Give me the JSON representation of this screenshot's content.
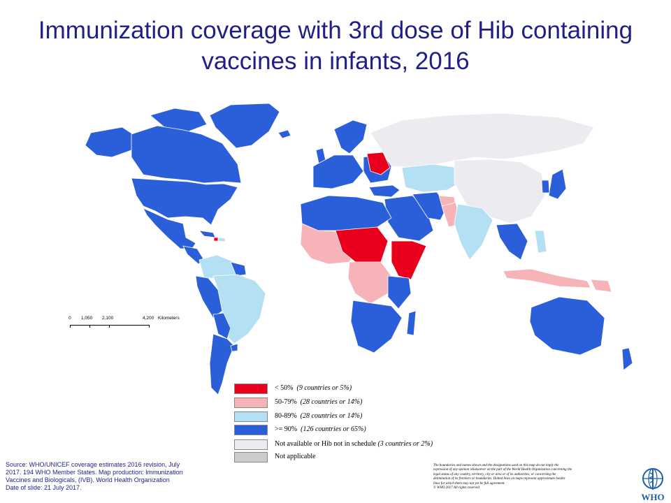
{
  "title": {
    "line1": "Immunization coverage with 3rd dose of Hib containing",
    "line2": "vaccines in infants, 2016"
  },
  "colors": {
    "below50": "#e8001c",
    "p50_79": "#f6b3b8",
    "p80_89": "#b3e0f2",
    "ge90": "#2b5fd9",
    "not_available": "#ececf0",
    "not_applicable": "#cccccc",
    "ocean": "#ffffff",
    "title": "#1f1f87"
  },
  "scale_bar": {
    "ticks": [
      "0",
      "1,050",
      "2,100",
      "4,200"
    ],
    "unit": "Kilometers"
  },
  "legend": [
    {
      "label": "< 50%",
      "note": "(9 countries or 5%)",
      "color_key": "below50"
    },
    {
      "label": "50-79%",
      "note": "(28 countries or 14%)",
      "color_key": "p50_79"
    },
    {
      "label": "80-89%",
      "note": "(28 countries or 14%)",
      "color_key": "p80_89"
    },
    {
      "label": ">= 90%",
      "note": "(126 countries or 65%)",
      "color_key": "ge90"
    },
    {
      "label": "Not available or Hib not in schedule",
      "note": "(3 countries or 2%)",
      "color_key": "not_available"
    },
    {
      "label": "Not applicable",
      "note": "",
      "color_key": "not_applicable"
    }
  ],
  "source": {
    "line1": "Source: WHO/UNICEF   coverage estimates 2016 revision, July",
    "line2": "2017.  194 WHO Member States. Map production: Immunization",
    "line3": "Vaccines and Biologicals, (IVB). World Health Organization",
    "line4": "Date of slide: 21 July 2017."
  },
  "disclaimer": [
    "The boundaries and names shown and the designations used on this map do not imply the",
    "expression of any opinion whatsoever on the part of the World Health Organization concerning the",
    "legal status of any country, territory, city or area or of its authorities, or concerning the",
    "delimitation of its frontiers or boundaries. Dotted lines on maps represent approximate border",
    "lines for which there may not yet be full agreement.",
    "© WHO 2017 All rights reserved"
  ],
  "logo": {
    "text": "WHO",
    "icon": "who-emblem-icon"
  }
}
